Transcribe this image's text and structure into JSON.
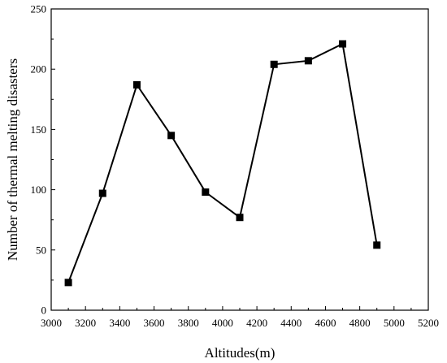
{
  "chart_data": {
    "type": "line",
    "title": "",
    "xlabel": "Altitudes(m)",
    "ylabel": "Number of thermal melting disasters",
    "xlim": [
      3000,
      5200
    ],
    "ylim": [
      0,
      250
    ],
    "xticks": [
      3000,
      3200,
      3400,
      3600,
      3800,
      4000,
      4200,
      4400,
      4600,
      4800,
      5000,
      5200
    ],
    "yticks": [
      0,
      50,
      100,
      150,
      200,
      250
    ],
    "grid": false,
    "legend": "none",
    "series": [
      {
        "x": [
          3100,
          3300,
          3500,
          3700,
          3900,
          4100,
          4300,
          4500,
          4700,
          4900
        ],
        "y": [
          23,
          97,
          187,
          145,
          98,
          77,
          204,
          207,
          221,
          54
        ],
        "color": "#000000",
        "marker": "square"
      }
    ]
  }
}
